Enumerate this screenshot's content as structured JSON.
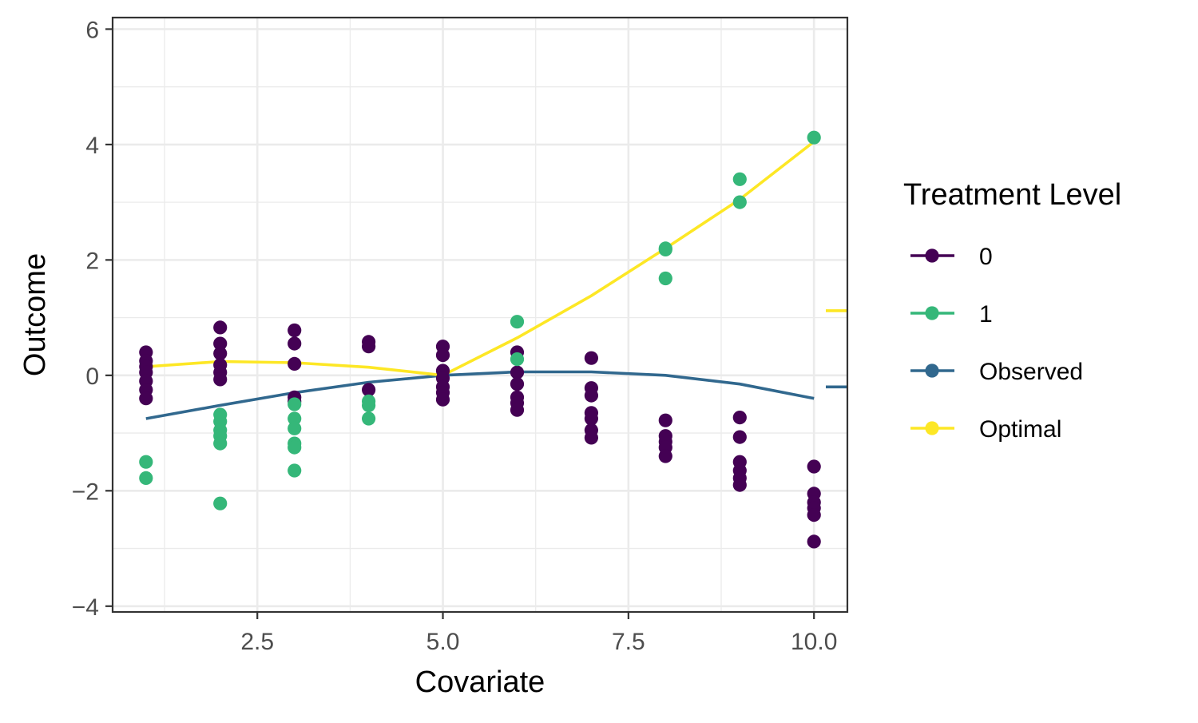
{
  "chart_data": {
    "type": "scatter",
    "title": "",
    "xlabel": "Covariate",
    "ylabel": "Outcome",
    "xlim": [
      0.55,
      10.45
    ],
    "ylim": [
      -4.1,
      6.2
    ],
    "x_ticks": [
      2.5,
      5.0,
      7.5,
      10.0
    ],
    "x_tick_labels": [
      "2.5",
      "5.0",
      "7.5",
      "10.0"
    ],
    "y_ticks": [
      -4,
      -2,
      0,
      2,
      4,
      6
    ],
    "y_tick_labels": [
      "−4",
      "−2",
      "0",
      "2",
      "4",
      "6"
    ],
    "x_minor_ticks": [
      1.25,
      3.75,
      6.25,
      8.75
    ],
    "y_minor_ticks": [
      -3,
      -1,
      1,
      3,
      5
    ],
    "grid": true,
    "legend": {
      "title": "Treatment Level",
      "placement": "right",
      "entries": [
        {
          "label": "0",
          "color": "#440154"
        },
        {
          "label": "1",
          "color": "#35B779"
        },
        {
          "label": "Observed",
          "color": "#31688E"
        },
        {
          "label": "Optimal",
          "color": "#FDE725"
        }
      ]
    },
    "series": [
      {
        "name": "0",
        "kind": "points",
        "color": "#440154",
        "points": [
          [
            1,
            0.4
          ],
          [
            1,
            0.25
          ],
          [
            1,
            0.15
          ],
          [
            1,
            0.05
          ],
          [
            1,
            -0.1
          ],
          [
            1,
            -0.25
          ],
          [
            1,
            -0.4
          ],
          [
            2,
            0.83
          ],
          [
            2,
            0.55
          ],
          [
            2,
            0.38
          ],
          [
            2,
            0.18
          ],
          [
            2,
            0.05
          ],
          [
            2,
            -0.07
          ],
          [
            3,
            0.78
          ],
          [
            3,
            0.55
          ],
          [
            3,
            0.2
          ],
          [
            3,
            -0.38
          ],
          [
            3,
            -0.45
          ],
          [
            4,
            0.58
          ],
          [
            4,
            0.5
          ],
          [
            4,
            -0.25
          ],
          [
            5,
            0.5
          ],
          [
            5,
            0.35
          ],
          [
            5,
            0.08
          ],
          [
            5,
            -0.05
          ],
          [
            5,
            -0.2
          ],
          [
            5,
            -0.3
          ],
          [
            5,
            -0.42
          ],
          [
            6,
            0.4
          ],
          [
            6,
            0.05
          ],
          [
            6,
            -0.15
          ],
          [
            6,
            -0.38
          ],
          [
            6,
            -0.48
          ],
          [
            6,
            -0.6
          ],
          [
            7,
            0.3
          ],
          [
            7,
            -0.22
          ],
          [
            7,
            -0.35
          ],
          [
            7,
            -0.65
          ],
          [
            7,
            -0.75
          ],
          [
            7,
            -0.95
          ],
          [
            7,
            -1.08
          ],
          [
            8,
            -0.78
          ],
          [
            8,
            -1.05
          ],
          [
            8,
            -1.15
          ],
          [
            8,
            -1.25
          ],
          [
            8,
            -1.4
          ],
          [
            9,
            -0.73
          ],
          [
            9,
            -1.07
          ],
          [
            9,
            -1.5
          ],
          [
            9,
            -1.65
          ],
          [
            9,
            -1.78
          ],
          [
            9,
            -1.9
          ],
          [
            10,
            -1.58
          ],
          [
            10,
            -2.05
          ],
          [
            10,
            -2.2
          ],
          [
            10,
            -2.3
          ],
          [
            10,
            -2.42
          ],
          [
            10,
            -2.88
          ]
        ]
      },
      {
        "name": "1",
        "kind": "points",
        "color": "#35B779",
        "points": [
          [
            1,
            -1.5
          ],
          [
            1,
            -1.78
          ],
          [
            2,
            -0.68
          ],
          [
            2,
            -0.8
          ],
          [
            2,
            -0.95
          ],
          [
            2,
            -1.05
          ],
          [
            2,
            -1.18
          ],
          [
            2,
            -2.22
          ],
          [
            3,
            -0.5
          ],
          [
            3,
            -0.75
          ],
          [
            3,
            -0.92
          ],
          [
            3,
            -1.18
          ],
          [
            3,
            -1.25
          ],
          [
            3,
            -1.65
          ],
          [
            4,
            -0.45
          ],
          [
            4,
            -0.52
          ],
          [
            4,
            -0.75
          ],
          [
            6,
            0.93
          ],
          [
            6,
            0.28
          ],
          [
            8,
            2.2
          ],
          [
            8,
            2.18
          ],
          [
            8,
            1.68
          ],
          [
            9,
            3.4
          ],
          [
            9,
            3.0
          ],
          [
            10,
            4.12
          ]
        ]
      },
      {
        "name": "Observed",
        "kind": "line",
        "color": "#31688E",
        "x": [
          1,
          2,
          3,
          4,
          5,
          6,
          7,
          8,
          9,
          10
        ],
        "y": [
          -0.75,
          -0.52,
          -0.3,
          -0.12,
          0.0,
          0.06,
          0.06,
          0.0,
          -0.15,
          -0.4
        ]
      },
      {
        "name": "Optimal",
        "kind": "line",
        "color": "#FDE725",
        "x": [
          1,
          2,
          3,
          4,
          5,
          6,
          7,
          8,
          9,
          10
        ],
        "y": [
          0.15,
          0.24,
          0.22,
          0.14,
          0.0,
          0.65,
          1.38,
          2.2,
          3.05,
          4.05
        ]
      }
    ],
    "edge_markers": [
      {
        "series": "Optimal",
        "y": 1.12,
        "color": "#FDE725"
      },
      {
        "series": "Observed",
        "y": -0.2,
        "color": "#31688E"
      }
    ]
  }
}
